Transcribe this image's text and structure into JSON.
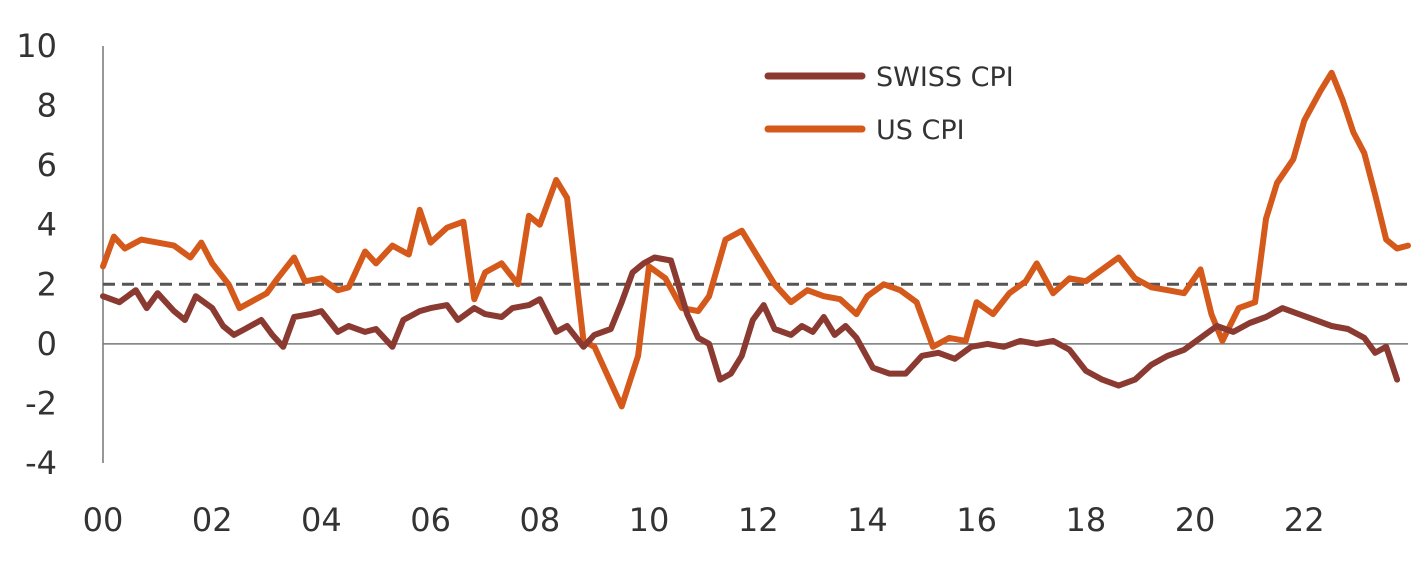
{
  "chart_data": {
    "type": "line",
    "title": "",
    "xlabel": "",
    "ylabel": "",
    "xlim": [
      2000,
      2023.9
    ],
    "ylim": [
      -4,
      10
    ],
    "yticks": [
      10,
      8,
      6,
      4,
      2,
      0,
      -2,
      -4
    ],
    "xticks": [
      {
        "x": 2000,
        "label": "00"
      },
      {
        "x": 2002,
        "label": "02"
      },
      {
        "x": 2004,
        "label": "04"
      },
      {
        "x": 2006,
        "label": "06"
      },
      {
        "x": 2008,
        "label": "08"
      },
      {
        "x": 2010,
        "label": "10"
      },
      {
        "x": 2012,
        "label": "12"
      },
      {
        "x": 2014,
        "label": "14"
      },
      {
        "x": 2016,
        "label": "16"
      },
      {
        "x": 2018,
        "label": "18"
      },
      {
        "x": 2020,
        "label": "20"
      },
      {
        "x": 2022,
        "label": "22"
      }
    ],
    "reference_line": {
      "y": 2,
      "style": "dashed",
      "color": "#555555"
    },
    "legend_position": "top-center",
    "series": [
      {
        "name": "SWISS CPI",
        "color": "#8b3a32",
        "points": [
          [
            2000.0,
            1.6
          ],
          [
            2000.3,
            1.4
          ],
          [
            2000.6,
            1.8
          ],
          [
            2000.8,
            1.2
          ],
          [
            2001.0,
            1.7
          ],
          [
            2001.3,
            1.1
          ],
          [
            2001.5,
            0.8
          ],
          [
            2001.7,
            1.6
          ],
          [
            2002.0,
            1.2
          ],
          [
            2002.2,
            0.6
          ],
          [
            2002.4,
            0.3
          ],
          [
            2002.6,
            0.5
          ],
          [
            2002.9,
            0.8
          ],
          [
            2003.1,
            0.3
          ],
          [
            2003.3,
            -0.1
          ],
          [
            2003.5,
            0.9
          ],
          [
            2003.8,
            1.0
          ],
          [
            2004.0,
            1.1
          ],
          [
            2004.3,
            0.4
          ],
          [
            2004.5,
            0.6
          ],
          [
            2004.8,
            0.4
          ],
          [
            2005.0,
            0.5
          ],
          [
            2005.3,
            -0.1
          ],
          [
            2005.5,
            0.8
          ],
          [
            2005.8,
            1.1
          ],
          [
            2006.0,
            1.2
          ],
          [
            2006.3,
            1.3
          ],
          [
            2006.5,
            0.8
          ],
          [
            2006.8,
            1.2
          ],
          [
            2007.0,
            1.0
          ],
          [
            2007.3,
            0.9
          ],
          [
            2007.5,
            1.2
          ],
          [
            2007.8,
            1.3
          ],
          [
            2008.0,
            1.5
          ],
          [
            2008.3,
            0.4
          ],
          [
            2008.5,
            0.6
          ],
          [
            2008.8,
            -0.1
          ],
          [
            2009.0,
            0.3
          ],
          [
            2009.3,
            0.5
          ],
          [
            2009.5,
            1.4
          ],
          [
            2009.7,
            2.4
          ],
          [
            2009.9,
            2.7
          ],
          [
            2010.1,
            2.9
          ],
          [
            2010.4,
            2.8
          ],
          [
            2010.7,
            1.0
          ],
          [
            2010.9,
            0.2
          ],
          [
            2011.1,
            0.0
          ],
          [
            2011.3,
            -1.2
          ],
          [
            2011.5,
            -1.0
          ],
          [
            2011.7,
            -0.4
          ],
          [
            2011.9,
            0.8
          ],
          [
            2012.1,
            1.3
          ],
          [
            2012.3,
            0.5
          ],
          [
            2012.6,
            0.3
          ],
          [
            2012.8,
            0.6
          ],
          [
            2013.0,
            0.4
          ],
          [
            2013.2,
            0.9
          ],
          [
            2013.4,
            0.3
          ],
          [
            2013.6,
            0.6
          ],
          [
            2013.8,
            0.2
          ],
          [
            2014.1,
            -0.8
          ],
          [
            2014.4,
            -1.0
          ],
          [
            2014.7,
            -1.0
          ],
          [
            2015.0,
            -0.4
          ],
          [
            2015.3,
            -0.3
          ],
          [
            2015.6,
            -0.5
          ],
          [
            2015.9,
            -0.1
          ],
          [
            2016.2,
            0.0
          ],
          [
            2016.5,
            -0.1
          ],
          [
            2016.8,
            0.1
          ],
          [
            2017.1,
            0.0
          ],
          [
            2017.4,
            0.1
          ],
          [
            2017.7,
            -0.2
          ],
          [
            2018.0,
            -0.9
          ],
          [
            2018.3,
            -1.2
          ],
          [
            2018.6,
            -1.4
          ],
          [
            2018.9,
            -1.2
          ],
          [
            2019.2,
            -0.7
          ],
          [
            2019.5,
            -0.4
          ],
          [
            2019.8,
            -0.2
          ],
          [
            2020.1,
            0.2
          ],
          [
            2020.4,
            0.6
          ],
          [
            2020.7,
            0.4
          ],
          [
            2021.0,
            0.7
          ],
          [
            2021.3,
            0.9
          ],
          [
            2021.6,
            1.2
          ],
          [
            2021.9,
            1.0
          ],
          [
            2022.2,
            0.8
          ],
          [
            2022.5,
            0.6
          ],
          [
            2022.8,
            0.5
          ],
          [
            2023.1,
            0.2
          ],
          [
            2023.3,
            -0.3
          ],
          [
            2023.5,
            -0.1
          ],
          [
            2023.7,
            -1.2
          ]
        ]
      },
      {
        "name": "US CPI",
        "color": "#d4591a",
        "points": [
          [
            2000.0,
            2.6
          ],
          [
            2000.2,
            3.6
          ],
          [
            2000.4,
            3.2
          ],
          [
            2000.7,
            3.5
          ],
          [
            2001.0,
            3.4
          ],
          [
            2001.3,
            3.3
          ],
          [
            2001.6,
            2.9
          ],
          [
            2001.8,
            3.4
          ],
          [
            2002.0,
            2.7
          ],
          [
            2002.3,
            2.0
          ],
          [
            2002.5,
            1.2
          ],
          [
            2002.7,
            1.4
          ],
          [
            2003.0,
            1.7
          ],
          [
            2003.2,
            2.2
          ],
          [
            2003.5,
            2.9
          ],
          [
            2003.7,
            2.1
          ],
          [
            2004.0,
            2.2
          ],
          [
            2004.3,
            1.8
          ],
          [
            2004.5,
            1.9
          ],
          [
            2004.8,
            3.1
          ],
          [
            2005.0,
            2.7
          ],
          [
            2005.3,
            3.3
          ],
          [
            2005.6,
            3.0
          ],
          [
            2005.8,
            4.5
          ],
          [
            2006.0,
            3.4
          ],
          [
            2006.3,
            3.9
          ],
          [
            2006.6,
            4.1
          ],
          [
            2006.8,
            1.5
          ],
          [
            2007.0,
            2.4
          ],
          [
            2007.3,
            2.7
          ],
          [
            2007.6,
            2.0
          ],
          [
            2007.8,
            4.3
          ],
          [
            2008.0,
            4.0
          ],
          [
            2008.3,
            5.5
          ],
          [
            2008.5,
            4.9
          ],
          [
            2008.8,
            0.1
          ],
          [
            2009.0,
            -0.1
          ],
          [
            2009.3,
            -1.3
          ],
          [
            2009.5,
            -2.1
          ],
          [
            2009.8,
            -0.4
          ],
          [
            2010.0,
            2.6
          ],
          [
            2010.3,
            2.2
          ],
          [
            2010.6,
            1.2
          ],
          [
            2010.9,
            1.1
          ],
          [
            2011.1,
            1.6
          ],
          [
            2011.4,
            3.5
          ],
          [
            2011.7,
            3.8
          ],
          [
            2012.0,
            2.9
          ],
          [
            2012.3,
            2.0
          ],
          [
            2012.6,
            1.4
          ],
          [
            2012.9,
            1.8
          ],
          [
            2013.2,
            1.6
          ],
          [
            2013.5,
            1.5
          ],
          [
            2013.8,
            1.0
          ],
          [
            2014.0,
            1.6
          ],
          [
            2014.3,
            2.0
          ],
          [
            2014.6,
            1.8
          ],
          [
            2014.9,
            1.4
          ],
          [
            2015.2,
            -0.1
          ],
          [
            2015.5,
            0.2
          ],
          [
            2015.8,
            0.1
          ],
          [
            2016.0,
            1.4
          ],
          [
            2016.3,
            1.0
          ],
          [
            2016.6,
            1.7
          ],
          [
            2016.9,
            2.1
          ],
          [
            2017.1,
            2.7
          ],
          [
            2017.4,
            1.7
          ],
          [
            2017.7,
            2.2
          ],
          [
            2018.0,
            2.1
          ],
          [
            2018.3,
            2.5
          ],
          [
            2018.6,
            2.9
          ],
          [
            2018.9,
            2.2
          ],
          [
            2019.2,
            1.9
          ],
          [
            2019.5,
            1.8
          ],
          [
            2019.8,
            1.7
          ],
          [
            2020.1,
            2.5
          ],
          [
            2020.3,
            1.0
          ],
          [
            2020.5,
            0.1
          ],
          [
            2020.8,
            1.2
          ],
          [
            2021.1,
            1.4
          ],
          [
            2021.3,
            4.2
          ],
          [
            2021.5,
            5.4
          ],
          [
            2021.8,
            6.2
          ],
          [
            2022.0,
            7.5
          ],
          [
            2022.3,
            8.5
          ],
          [
            2022.5,
            9.1
          ],
          [
            2022.7,
            8.2
          ],
          [
            2022.9,
            7.1
          ],
          [
            2023.1,
            6.4
          ],
          [
            2023.3,
            5.0
          ],
          [
            2023.5,
            3.5
          ],
          [
            2023.7,
            3.2
          ],
          [
            2023.9,
            3.3
          ]
        ]
      }
    ]
  }
}
